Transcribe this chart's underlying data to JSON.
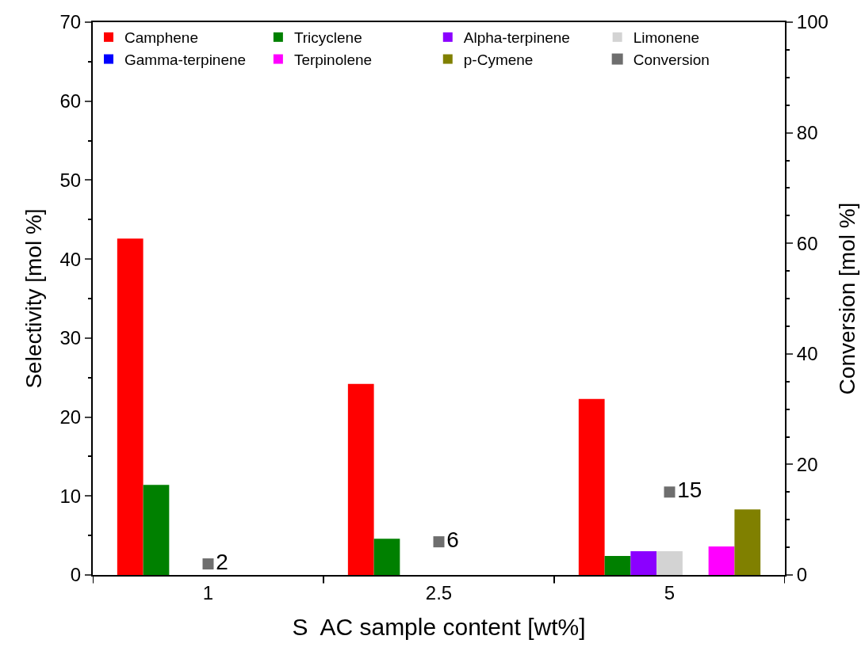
{
  "chart_data": {
    "type": "bar",
    "xlabel": "S  AC sample content [wt%]",
    "ylabel": "Selectivity [mol %]",
    "y2label": "Conversion [mol %]",
    "categories": [
      "1",
      "2.5",
      "5"
    ],
    "series": [
      {
        "name": "Camphene",
        "color": "#ff0000",
        "values": [
          42.6,
          24.2,
          22.3
        ]
      },
      {
        "name": "Tricyclene",
        "color": "#008000",
        "values": [
          11.4,
          4.6,
          2.4
        ]
      },
      {
        "name": "Alpha-terpinene",
        "color": "#8b00ff",
        "values": [
          0,
          0,
          3.0
        ]
      },
      {
        "name": "Limonene",
        "color": "#d3d3d3",
        "values": [
          0,
          0,
          3.0
        ]
      },
      {
        "name": "Gamma-terpinene",
        "color": "#0000ff",
        "values": [
          0,
          0,
          0
        ]
      },
      {
        "name": "Terpinolene",
        "color": "#ff00ff",
        "values": [
          0,
          0,
          3.6
        ]
      },
      {
        "name": "p-Cymene",
        "color": "#808000",
        "values": [
          0,
          0,
          8.3
        ]
      },
      {
        "name": "Conversion",
        "type": "scatter",
        "axis": "y2",
        "marker": "square",
        "color": "#6e6e6e",
        "values": [
          2,
          6,
          15
        ],
        "data_labels": true
      }
    ],
    "ylim": [
      0,
      70
    ],
    "yticks": [
      0,
      10,
      20,
      30,
      40,
      50,
      60,
      70
    ],
    "y2lim": [
      0,
      100
    ],
    "y2ticks": [
      0,
      20,
      40,
      60,
      80,
      100
    ],
    "legend": "top"
  }
}
